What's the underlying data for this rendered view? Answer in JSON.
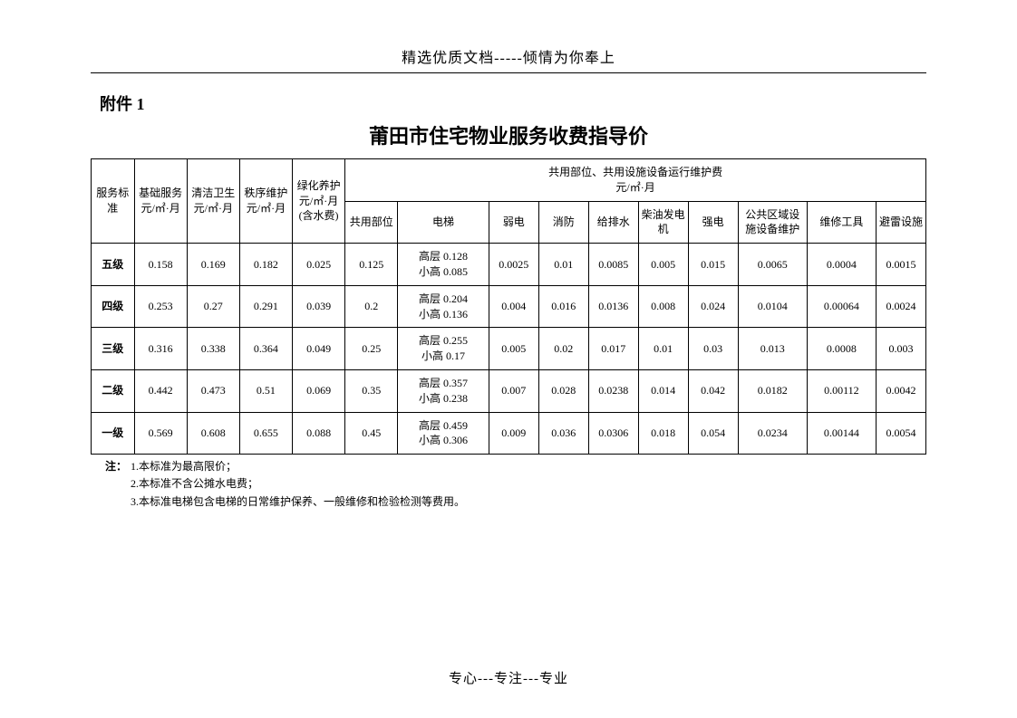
{
  "header_text": "精选优质文档-----倾情为你奉上",
  "attach_label": "附件 1",
  "title": "莆田市住宅物业服务收费指导价",
  "columns": {
    "service_std": "服务标准",
    "base_service": "基础服务元/㎡·月",
    "cleaning": "清洁卫生元/㎡·月",
    "order_maint": "秩序维护元/㎡·月",
    "greening": "绿化养护元/㎡·月(含水费)",
    "shared_group": "共用部位、共用设施设备运行维护费\n元/㎡·月",
    "shared_area": "共用部位",
    "elevator": "电梯",
    "weak_elec": "弱电",
    "fire": "消防",
    "water": "给排水",
    "diesel": "柴油发电机",
    "strong_elec": "强电",
    "public_equip": "公共区域设施设备维护",
    "repair_tool": "维修工具",
    "lightning": "避雷设施"
  },
  "rows": [
    {
      "level": "五级",
      "base": "0.158",
      "clean": "0.169",
      "order": "0.182",
      "green": "0.025",
      "shared": "0.125",
      "elev": "高层 0.128\n小高 0.085",
      "weak": "0.0025",
      "fire": "0.01",
      "water": "0.0085",
      "diesel": "0.005",
      "strong": "0.015",
      "pub": "0.0065",
      "tool": "0.0004",
      "light": "0.0015"
    },
    {
      "level": "四级",
      "base": "0.253",
      "clean": "0.27",
      "order": "0.291",
      "green": "0.039",
      "shared": "0.2",
      "elev": "高层 0.204\n小高 0.136",
      "weak": "0.004",
      "fire": "0.016",
      "water": "0.0136",
      "diesel": "0.008",
      "strong": "0.024",
      "pub": "0.0104",
      "tool": "0.00064",
      "light": "0.0024"
    },
    {
      "level": "三级",
      "base": "0.316",
      "clean": "0.338",
      "order": "0.364",
      "green": "0.049",
      "shared": "0.25",
      "elev": "高层 0.255\n小高 0.17",
      "weak": "0.005",
      "fire": "0.02",
      "water": "0.017",
      "diesel": "0.01",
      "strong": "0.03",
      "pub": "0.013",
      "tool": "0.0008",
      "light": "0.003"
    },
    {
      "level": "二级",
      "base": "0.442",
      "clean": "0.473",
      "order": "0.51",
      "green": "0.069",
      "shared": "0.35",
      "elev": "高层 0.357\n小高 0.238",
      "weak": "0.007",
      "fire": "0.028",
      "water": "0.0238",
      "diesel": "0.014",
      "strong": "0.042",
      "pub": "0.0182",
      "tool": "0.00112",
      "light": "0.0042"
    },
    {
      "level": "一级",
      "base": "0.569",
      "clean": "0.608",
      "order": "0.655",
      "green": "0.088",
      "shared": "0.45",
      "elev": "高层 0.459\n小高 0.306",
      "weak": "0.009",
      "fire": "0.036",
      "water": "0.0306",
      "diesel": "0.018",
      "strong": "0.054",
      "pub": "0.0234",
      "tool": "0.00144",
      "light": "0.0054"
    }
  ],
  "notes_label": "注：",
  "notes": [
    "1.本标准为最高限价；",
    "2.本标准不含公摊水电费；",
    "3.本标准电梯包含电梯的日常维护保养、一般维修和检验检测等费用。"
  ],
  "footer": "专心---专注---专业"
}
